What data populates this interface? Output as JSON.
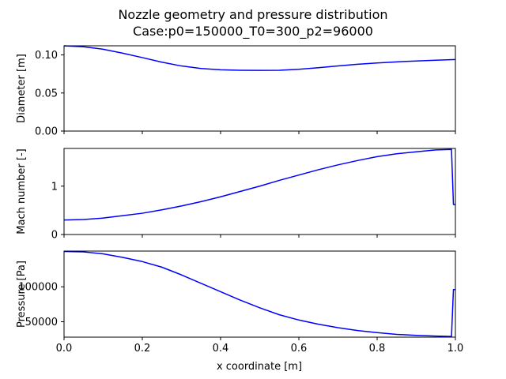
{
  "figure": {
    "title_line1": "Nozzle geometry and pressure distribution",
    "title_line2": "Case:p0=150000_T0=300_p2=96000",
    "xlabel": "x coordinate [m]",
    "line_color": "#0000ff"
  },
  "chart_data": [
    {
      "type": "line",
      "ylabel": "Diameter [m]",
      "xlim": [
        0,
        1
      ],
      "ylim": [
        0,
        0.112
      ],
      "xticks": [
        0,
        0.2,
        0.4,
        0.6,
        0.8,
        1.0
      ],
      "xtick_labels": [],
      "yticks": [
        0,
        0.05,
        0.1
      ],
      "ytick_labels": [
        "0.00",
        "0.05",
        "0.10"
      ],
      "grid": false,
      "x": [
        0,
        0.05,
        0.1,
        0.15,
        0.2,
        0.25,
        0.3,
        0.35,
        0.4,
        0.45,
        0.5,
        0.55,
        0.6,
        0.65,
        0.7,
        0.75,
        0.8,
        0.85,
        0.9,
        0.95,
        1.0
      ],
      "y": [
        0.112,
        0.1107,
        0.1075,
        0.1023,
        0.0965,
        0.0905,
        0.0855,
        0.0822,
        0.0805,
        0.0799,
        0.0797,
        0.0798,
        0.0812,
        0.0832,
        0.0856,
        0.0877,
        0.0895,
        0.0909,
        0.0921,
        0.0931,
        0.094
      ]
    },
    {
      "type": "line",
      "ylabel": "Mach number [-]",
      "xlim": [
        0,
        1
      ],
      "ylim": [
        0,
        1.78
      ],
      "xticks": [
        0,
        0.2,
        0.4,
        0.6,
        0.8,
        1.0
      ],
      "xtick_labels": [],
      "yticks": [
        0,
        1
      ],
      "ytick_labels": [
        "0",
        "1"
      ],
      "grid": false,
      "x": [
        0,
        0.05,
        0.1,
        0.15,
        0.2,
        0.25,
        0.3,
        0.35,
        0.4,
        0.45,
        0.5,
        0.55,
        0.6,
        0.65,
        0.7,
        0.75,
        0.8,
        0.85,
        0.9,
        0.95,
        0.99,
        0.995,
        1.0
      ],
      "y": [
        0.3,
        0.31,
        0.34,
        0.39,
        0.44,
        0.51,
        0.59,
        0.68,
        0.78,
        0.89,
        1.0,
        1.12,
        1.23,
        1.34,
        1.44,
        1.53,
        1.61,
        1.67,
        1.71,
        1.75,
        1.76,
        0.62,
        0.62
      ]
    },
    {
      "type": "line",
      "ylabel": "Pressure [Pa]",
      "xlim": [
        0,
        1
      ],
      "ylim": [
        28000,
        151000
      ],
      "xticks": [
        0,
        0.2,
        0.4,
        0.6,
        0.8,
        1.0
      ],
      "xtick_labels": [
        "0.0",
        "0.2",
        "0.4",
        "0.6",
        "0.8",
        "1.0"
      ],
      "yticks": [
        50000,
        100000
      ],
      "ytick_labels": [
        "50000",
        "100000"
      ],
      "grid": false,
      "x": [
        0,
        0.05,
        0.1,
        0.15,
        0.2,
        0.25,
        0.3,
        0.35,
        0.4,
        0.45,
        0.5,
        0.55,
        0.6,
        0.65,
        0.7,
        0.75,
        0.8,
        0.85,
        0.9,
        0.95,
        0.99,
        0.995,
        1.0
      ],
      "y": [
        150500,
        149800,
        147000,
        142000,
        136000,
        128000,
        117000,
        105000,
        93000,
        81000,
        70000,
        60000,
        52500,
        46500,
        41500,
        37500,
        34500,
        32000,
        30500,
        29500,
        29000,
        96000,
        96000
      ]
    }
  ]
}
